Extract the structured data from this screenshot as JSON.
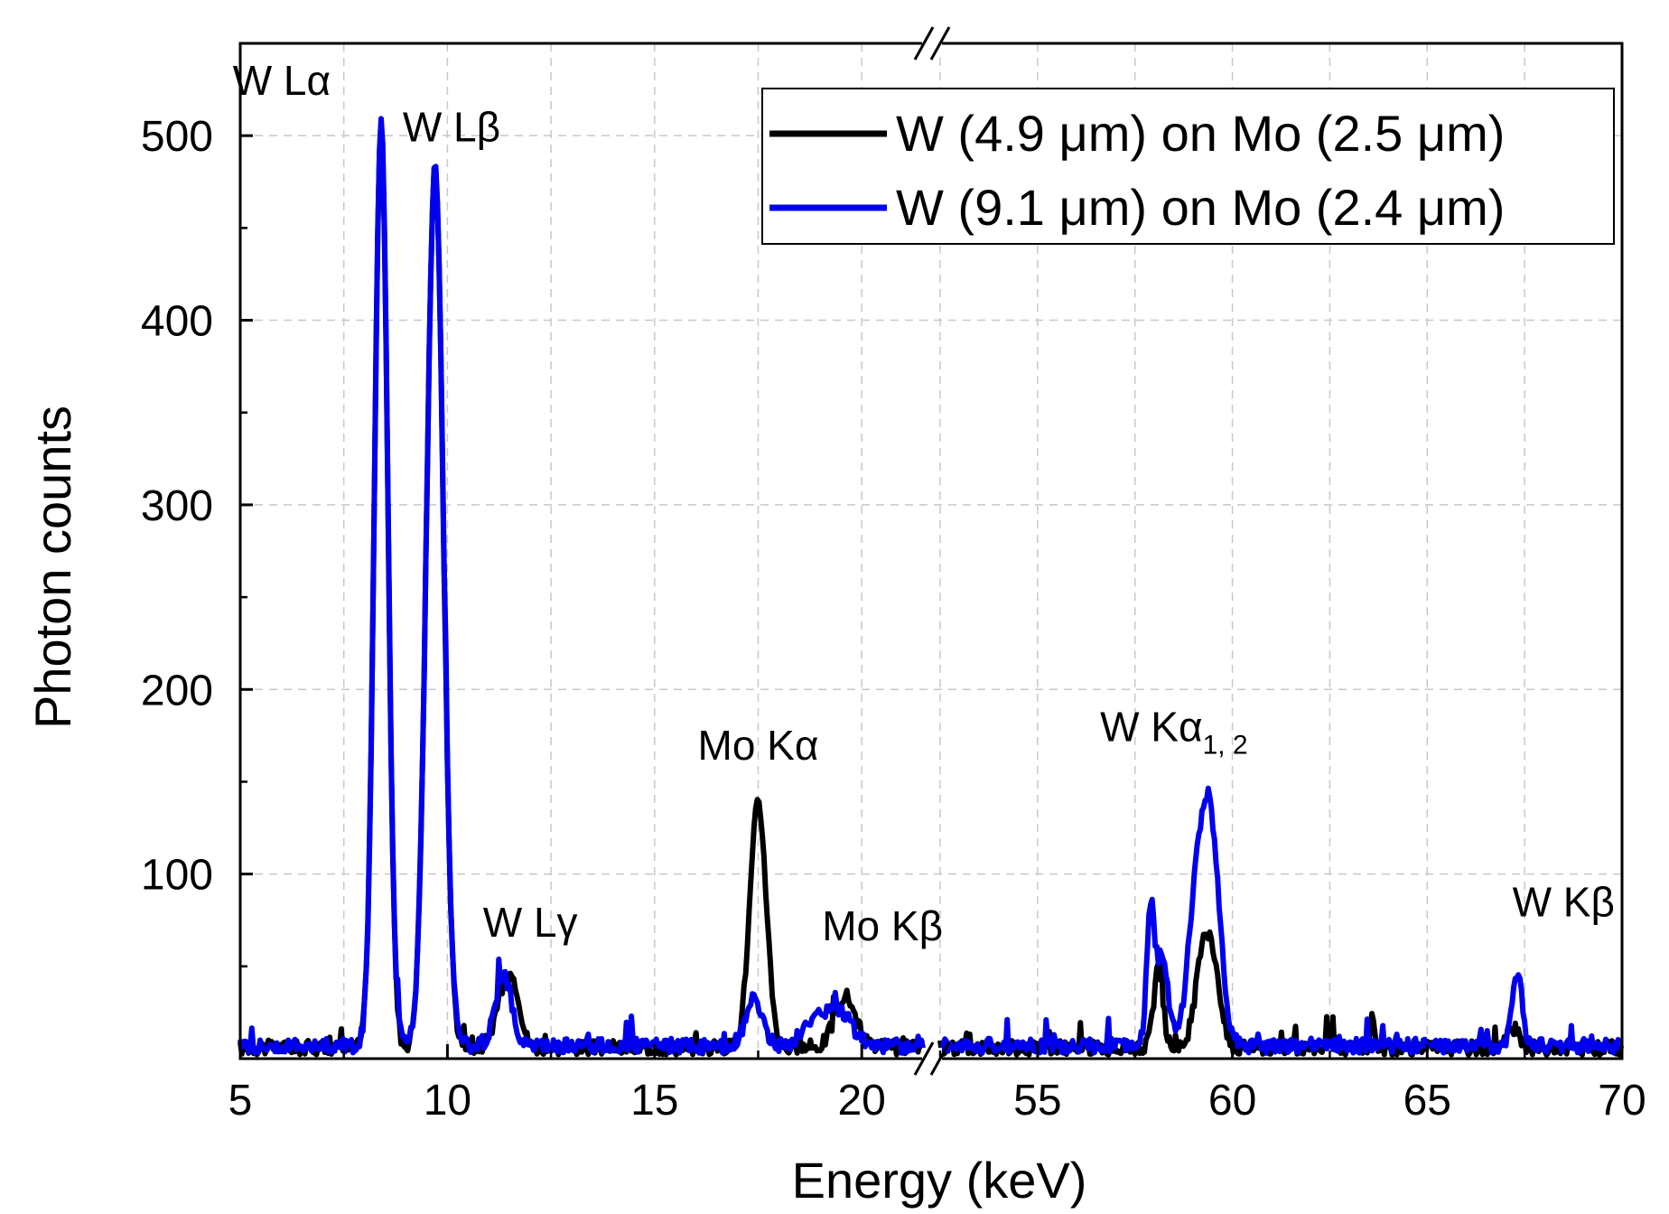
{
  "chart_data": {
    "type": "line",
    "title": "",
    "xlabel": "Energy (keV)",
    "ylabel": "Photon counts",
    "axis_break": {
      "from": 21.5,
      "to": 52.5
    },
    "x_segments": [
      {
        "range": [
          5,
          21.5
        ],
        "ticks": [
          "5",
          "10",
          "15",
          "20"
        ],
        "tick_values": [
          5,
          10,
          15,
          20
        ]
      },
      {
        "range": [
          52.5,
          70
        ],
        "ticks": [
          "55",
          "60",
          "65",
          "70"
        ],
        "tick_values": [
          55,
          60,
          65,
          70
        ]
      }
    ],
    "ylim": [
      0,
      550
    ],
    "yticks": [
      100,
      200,
      300,
      400,
      500
    ],
    "ytick_labels": [
      "100",
      "200",
      "300",
      "400",
      "500"
    ],
    "grid": true,
    "legend_position": "top-right",
    "series": [
      {
        "name": "W (4.9 μm) on Mo (2.5 μm)",
        "color": "#000000",
        "baseline": 6,
        "peaks": [
          {
            "x": 8.4,
            "y": 500,
            "w": 0.16
          },
          {
            "x": 9.7,
            "y": 478,
            "w": 0.2
          },
          {
            "x": 11.4,
            "y": 31,
            "w": 0.22
          },
          {
            "x": 11.65,
            "y": 18,
            "w": 0.15
          },
          {
            "x": 17.5,
            "y": 132,
            "w": 0.2
          },
          {
            "x": 19.6,
            "y": 28,
            "w": 0.25
          },
          {
            "x": 58.1,
            "y": 42,
            "w": 0.12
          },
          {
            "x": 59.3,
            "y": 58,
            "w": 0.22
          },
          {
            "x": 59.6,
            "y": 20,
            "w": 0.15
          },
          {
            "x": 63.6,
            "y": 18,
            "w": 0.05
          },
          {
            "x": 67.2,
            "y": 10,
            "w": 0.15
          }
        ]
      },
      {
        "name": "W (9.1 μm) on Mo (2.4 μm)",
        "color": "#0000ee",
        "baseline": 7,
        "peaks": [
          {
            "x": 8.4,
            "y": 503,
            "w": 0.16
          },
          {
            "x": 9.7,
            "y": 478,
            "w": 0.2
          },
          {
            "x": 11.35,
            "y": 38,
            "w": 0.2
          },
          {
            "x": 17.4,
            "y": 25,
            "w": 0.2
          },
          {
            "x": 18.9,
            "y": 15,
            "w": 0.3
          },
          {
            "x": 19.5,
            "y": 16,
            "w": 0.3
          },
          {
            "x": 57.9,
            "y": 70,
            "w": 0.1
          },
          {
            "x": 58.2,
            "y": 48,
            "w": 0.15
          },
          {
            "x": 59.4,
            "y": 128,
            "w": 0.25
          },
          {
            "x": 59.0,
            "y": 50,
            "w": 0.2
          },
          {
            "x": 67.3,
            "y": 40,
            "w": 0.13
          }
        ]
      }
    ],
    "annotations": [
      {
        "text": "W Lα",
        "x": 6.0,
        "y": 522
      },
      {
        "text": "W Lβ",
        "x": 10.1,
        "y": 497
      },
      {
        "text": "W Lγ",
        "x": 12.0,
        "y": 66
      },
      {
        "text": "Mo Kα",
        "x": 17.5,
        "y": 162
      },
      {
        "text": "Mo Kβ",
        "x": 20.5,
        "y": 64
      },
      {
        "text": "W Kα",
        "sub": "1, 2",
        "x": 58.5,
        "y": 172
      },
      {
        "text": "W Kβ",
        "x": 68.5,
        "y": 77
      }
    ]
  }
}
